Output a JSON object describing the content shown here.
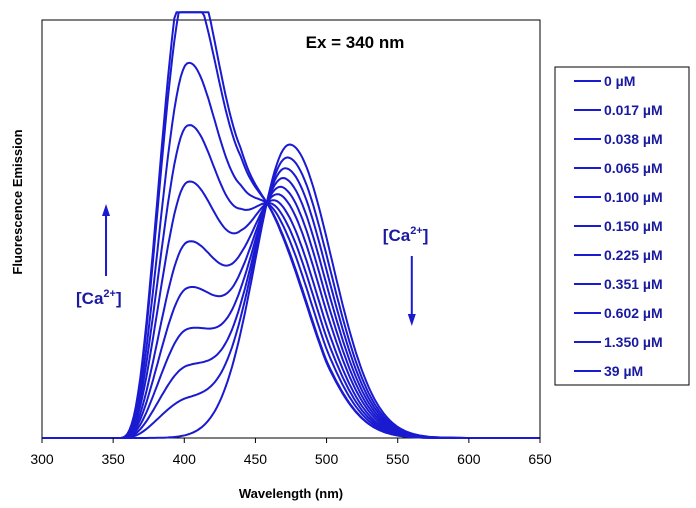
{
  "chart_data": {
    "type": "line",
    "title": "Ex = 340 nm",
    "xlabel": "Wavelength (nm)",
    "ylabel": "Fluorescence Emission",
    "xlim": [
      300,
      650
    ],
    "xticks": [
      "300",
      "350",
      "400",
      "450",
      "500",
      "550",
      "600",
      "650"
    ],
    "ylim": [
      0,
      1
    ],
    "grid": false,
    "legend_position": "right",
    "line_color": "#1a1ad0",
    "isosbestic_point": {
      "x": 458,
      "y": 0.58
    },
    "series": [
      {
        "name": "0 µM",
        "peak_nm": 474,
        "peak_value": 0.635,
        "shoulder": 0.0
      },
      {
        "name": "0.017 µM",
        "peak_nm": 473,
        "peak_value": 0.62,
        "shoulder": 0.08
      },
      {
        "name": "0.038 µM",
        "peak_nm": 472,
        "peak_value": 0.605,
        "shoulder": 0.15
      },
      {
        "name": "0.065 µM",
        "peak_nm": 471,
        "peak_value": 0.59,
        "shoulder": 0.23
      },
      {
        "name": "0.100 µM",
        "peak_nm": 470,
        "peak_value": 0.575,
        "shoulder": 0.32
      },
      {
        "name": "0.150 µM",
        "peak_nm": 469,
        "peak_value": 0.56,
        "shoulder": 0.42
      },
      {
        "name": "0.225 µM",
        "peak_nm": 468,
        "peak_value": 0.545,
        "shoulder": 0.55
      },
      {
        "name": "0.351 µM",
        "peak_nm": 467,
        "peak_value": 0.53,
        "shoulder": 0.67
      },
      {
        "name": "0.602 µM",
        "peak_nm": 466,
        "peak_value": 0.515,
        "shoulder": 0.8
      },
      {
        "name": "1.350 µM",
        "peak_nm": 465,
        "peak_value": 0.5,
        "shoulder": 0.96
      },
      {
        "name": "39 µM",
        "peak_nm": 465,
        "peak_value": 0.49,
        "shoulder": 1.0
      }
    ],
    "annotations": [
      {
        "label": "[Ca",
        "sup": "2+",
        "suffix": "]",
        "arrow": "up",
        "x": 345
      },
      {
        "label": "[Ca",
        "sup": "2+",
        "suffix": "]",
        "arrow": "down",
        "x": 562
      }
    ]
  }
}
